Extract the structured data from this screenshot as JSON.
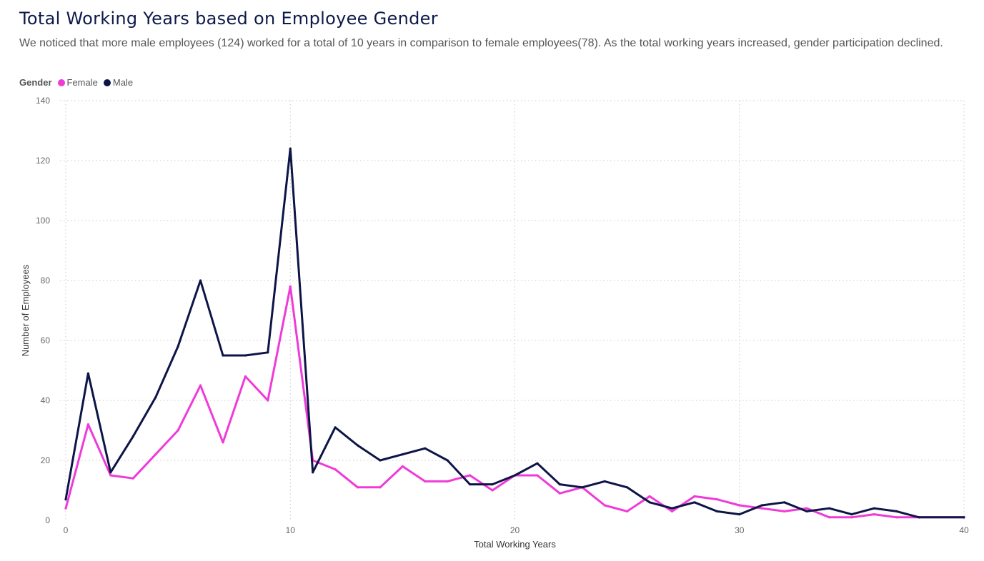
{
  "title": "Total Working Years based on Employee Gender",
  "subtitle": "We noticed that more male employees (124) worked for a total of 10 years in comparison to female employees(78). As the total working years increased, gender participation declined.",
  "legend": {
    "title": "Gender",
    "items": [
      {
        "label": "Female",
        "color": "#f03ad8"
      },
      {
        "label": "Male",
        "color": "#0d1547"
      }
    ]
  },
  "chart_data": {
    "type": "line",
    "xlabel": "Total Working Years",
    "ylabel": "Number of Employees",
    "xlim": [
      0,
      40
    ],
    "ylim": [
      0,
      140
    ],
    "xticks": [
      0,
      10,
      20,
      30,
      40
    ],
    "yticks": [
      0,
      20,
      40,
      60,
      80,
      100,
      120,
      140
    ],
    "grid": true,
    "legend_position": "top-left",
    "x": [
      0,
      1,
      2,
      3,
      4,
      5,
      6,
      7,
      8,
      9,
      10,
      11,
      12,
      13,
      14,
      15,
      16,
      17,
      18,
      19,
      20,
      21,
      22,
      23,
      24,
      25,
      26,
      27,
      28,
      29,
      30,
      31,
      32,
      33,
      34,
      35,
      36,
      37,
      38,
      40
    ],
    "series": [
      {
        "name": "Female",
        "color": "#f03ad8",
        "values": [
          4,
          32,
          15,
          14,
          22,
          30,
          45,
          26,
          48,
          40,
          78,
          20,
          17,
          11,
          11,
          18,
          13,
          13,
          15,
          10,
          15,
          15,
          9,
          11,
          5,
          3,
          8,
          3,
          8,
          7,
          5,
          4,
          3,
          4,
          1,
          1,
          2,
          1,
          1,
          1
        ]
      },
      {
        "name": "Male",
        "color": "#0d1547",
        "values": [
          7,
          49,
          16,
          28,
          41,
          58,
          80,
          55,
          55,
          56,
          124,
          16,
          31,
          25,
          20,
          22,
          24,
          20,
          12,
          12,
          15,
          19,
          12,
          11,
          13,
          11,
          6,
          4,
          6,
          3,
          2,
          5,
          6,
          3,
          4,
          2,
          4,
          3,
          1,
          1
        ]
      }
    ]
  }
}
